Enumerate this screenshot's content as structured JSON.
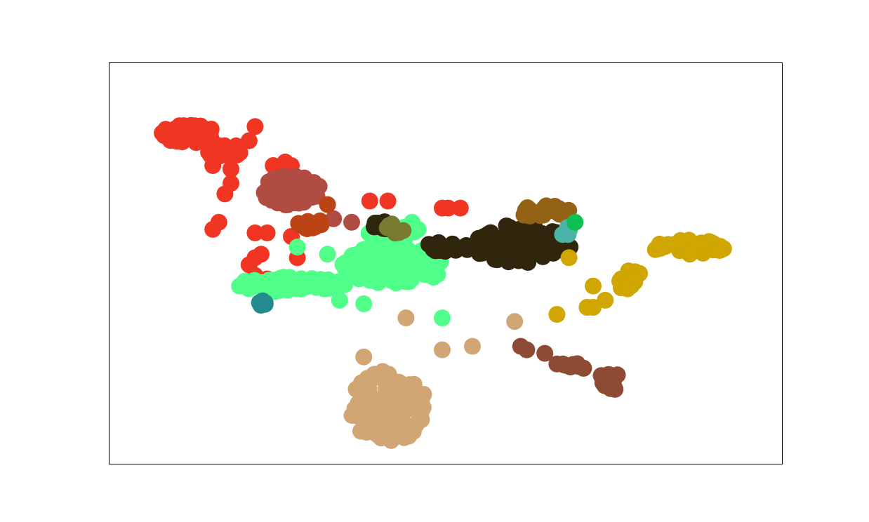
{
  "chart_data": {
    "type": "scatter",
    "title": "",
    "xlabel": "",
    "ylabel": "",
    "xlim": [
      0,
      100
    ],
    "ylim": [
      0,
      100
    ],
    "axes_visible": false,
    "grid": false,
    "legend": "none",
    "series": [
      {
        "color": "#f03523",
        "clusters": [
          {
            "cx": 8,
            "cy": 89,
            "rx": 4.5,
            "ry": 2.6,
            "n": 60
          },
          {
            "cx": 14,
            "cy": 84,
            "rx": 3.0,
            "ry": 2.2,
            "n": 20
          }
        ],
        "points": [
          [
            15,
            79
          ],
          [
            16,
            83
          ],
          [
            18,
            87
          ],
          [
            19,
            91
          ],
          [
            12,
            80
          ],
          [
            15,
            75
          ],
          [
            14,
            72
          ],
          [
            22,
            80
          ],
          [
            24,
            81
          ],
          [
            25,
            80
          ],
          [
            38,
            70
          ],
          [
            41,
            70
          ],
          [
            50,
            68
          ],
          [
            51,
            68
          ],
          [
            53,
            68
          ],
          [
            47,
            54
          ],
          [
            37,
            54
          ],
          [
            26,
            54
          ],
          [
            25,
            60
          ],
          [
            21,
            48
          ],
          [
            19,
            54
          ],
          [
            20,
            55
          ],
          [
            19,
            49
          ],
          [
            18,
            52
          ],
          [
            19,
            61
          ],
          [
            21,
            61
          ],
          [
            23,
            71
          ],
          [
            12,
            62
          ],
          [
            13,
            64
          ]
        ]
      },
      {
        "color": "#b04c42",
        "clusters": [
          {
            "cx": 25,
            "cy": 73,
            "rx": 4.8,
            "ry": 4.2,
            "n": 70
          }
        ],
        "points": [
          [
            32,
            65
          ],
          [
            35,
            64
          ]
        ]
      },
      {
        "color": "#bc4414",
        "clusters": [
          {
            "cx": 28,
            "cy": 63.5,
            "rx": 2.2,
            "ry": 1.5,
            "n": 14
          }
        ],
        "points": [
          [
            31,
            69
          ]
        ]
      },
      {
        "color": "#50ff8a",
        "clusters": [
          {
            "cx": 42,
            "cy": 52,
            "rx": 8.5,
            "ry": 5.5,
            "n": 130
          },
          {
            "cx": 25,
            "cy": 46.5,
            "rx": 9.0,
            "ry": 2.2,
            "n": 80
          },
          {
            "cx": 42,
            "cy": 61,
            "rx": 4.5,
            "ry": 2.2,
            "n": 25
          }
        ],
        "points": [
          [
            33,
            42
          ],
          [
            37,
            41
          ],
          [
            31,
            55
          ],
          [
            26,
            57
          ],
          [
            50,
            37
          ],
          [
            46,
            62
          ],
          [
            45,
            64
          ]
        ]
      },
      {
        "color": "#2f260d",
        "clusters": [
          {
            "cx": 63,
            "cy": 58,
            "rx": 8.5,
            "ry": 5.5,
            "n": 80
          },
          {
            "cx": 51,
            "cy": 57,
            "rx": 4.0,
            "ry": 1.5,
            "n": 18
          },
          {
            "cx": 40,
            "cy": 63,
            "rx": 1.8,
            "ry": 1.2,
            "n": 8
          }
        ],
        "points": []
      },
      {
        "color": "#946214",
        "clusters": [
          {
            "cx": 67,
            "cy": 67,
            "rx": 4.2,
            "ry": 1.8,
            "n": 25
          }
        ],
        "points": []
      },
      {
        "color": "#4bb2a6",
        "clusters": [
          {
            "cx": 71,
            "cy": 61,
            "rx": 1.2,
            "ry": 1.8,
            "n": 6
          }
        ],
        "points": []
      },
      {
        "color": "#0cc051",
        "clusters": [],
        "points": [
          [
            72,
            64
          ]
        ]
      },
      {
        "color": "#777a2f",
        "clusters": [
          {
            "cx": 42,
            "cy": 62,
            "rx": 1.6,
            "ry": 1.8,
            "n": 8
          }
        ],
        "points": []
      },
      {
        "color": "#238a8d",
        "clusters": [
          {
            "cx": 20.5,
            "cy": 41,
            "rx": 1.0,
            "ry": 1.0,
            "n": 5
          }
        ],
        "points": []
      },
      {
        "color": "#cfa602",
        "clusters": [
          {
            "cx": 91,
            "cy": 57,
            "rx": 6.5,
            "ry": 2.0,
            "n": 40
          },
          {
            "cx": 81,
            "cy": 48,
            "rx": 2.0,
            "ry": 3.5,
            "n": 14
          }
        ],
        "points": [
          [
            71,
            54
          ],
          [
            75,
            46
          ],
          [
            74,
            40
          ],
          [
            77,
            42
          ],
          [
            75,
            40
          ],
          [
            69,
            38
          ],
          [
            91,
            55
          ]
        ]
      },
      {
        "color": "#d2a574",
        "clusters": [
          {
            "cx": 41,
            "cy": 12,
            "rx": 6.5,
            "ry": 10.0,
            "n": 130
          }
        ],
        "points": [
          [
            44,
            37
          ],
          [
            50,
            28
          ],
          [
            55,
            29
          ],
          [
            62,
            36
          ],
          [
            37,
            26
          ]
        ]
      },
      {
        "color": "#8d4b33",
        "clusters": [
          {
            "cx": 78,
            "cy": 19,
            "rx": 2.5,
            "ry": 2.5,
            "n": 18
          },
          {
            "cx": 72,
            "cy": 23,
            "rx": 2.5,
            "ry": 1.2,
            "n": 8
          }
        ],
        "points": [
          [
            63,
            29
          ],
          [
            64,
            28
          ],
          [
            67,
            27
          ],
          [
            69,
            24
          ],
          [
            70,
            24
          ]
        ]
      }
    ]
  }
}
